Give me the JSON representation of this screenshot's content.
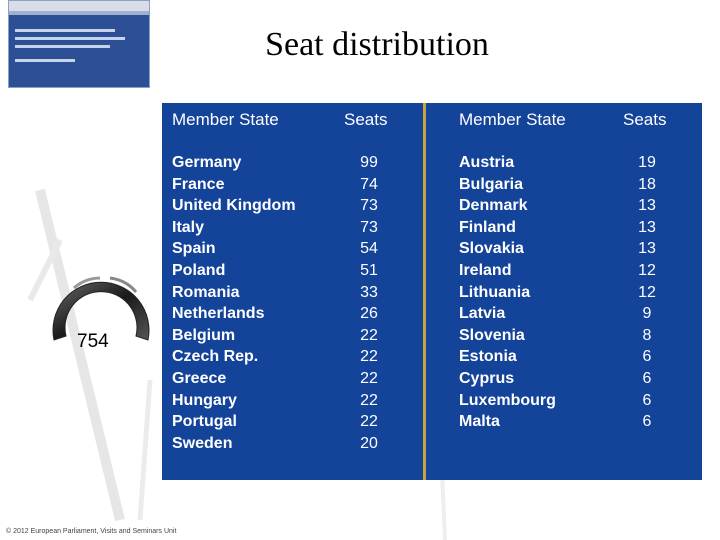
{
  "title": "Seat distribution",
  "total_seats": "754",
  "footer": "© 2012 European Parliament, Visits and Seminars Unit",
  "colors": {
    "panel": "#14439a",
    "separator": "#c8a23a",
    "text": "#ffffff"
  },
  "table": {
    "left": {
      "header_state": "Member State",
      "header_seats": "Seats",
      "rows": [
        {
          "state": "Germany",
          "seats": "99"
        },
        {
          "state": "France",
          "seats": "74"
        },
        {
          "state": "United Kingdom",
          "seats": "73"
        },
        {
          "state": "Italy",
          "seats": "73"
        },
        {
          "state": "Spain",
          "seats": "54"
        },
        {
          "state": "Poland",
          "seats": "51"
        },
        {
          "state": "Romania",
          "seats": "33"
        },
        {
          "state": "Netherlands",
          "seats": "26"
        },
        {
          "state": "Belgium",
          "seats": "22"
        },
        {
          "state": "Czech Rep.",
          "seats": "22"
        },
        {
          "state": "Greece",
          "seats": "22"
        },
        {
          "state": "Hungary",
          "seats": "22"
        },
        {
          "state": "Portugal",
          "seats": "22"
        },
        {
          "state": "Sweden",
          "seats": "20"
        }
      ]
    },
    "right": {
      "header_state": "Member State",
      "header_seats": "Seats",
      "rows": [
        {
          "state": "Austria",
          "seats": "19"
        },
        {
          "state": "Bulgaria",
          "seats": "18"
        },
        {
          "state": "Denmark",
          "seats": "13"
        },
        {
          "state": "Finland",
          "seats": "13"
        },
        {
          "state": "Slovakia",
          "seats": "13"
        },
        {
          "state": "Ireland",
          "seats": "12"
        },
        {
          "state": "Lithuania",
          "seats": "12"
        },
        {
          "state": "Latvia",
          "seats": "9"
        },
        {
          "state": "Slovenia",
          "seats": "8"
        },
        {
          "state": "Estonia",
          "seats": "6"
        },
        {
          "state": "Cyprus",
          "seats": "6"
        },
        {
          "state": "Luxembourg",
          "seats": "6"
        },
        {
          "state": "Malta",
          "seats": "6"
        }
      ]
    }
  }
}
